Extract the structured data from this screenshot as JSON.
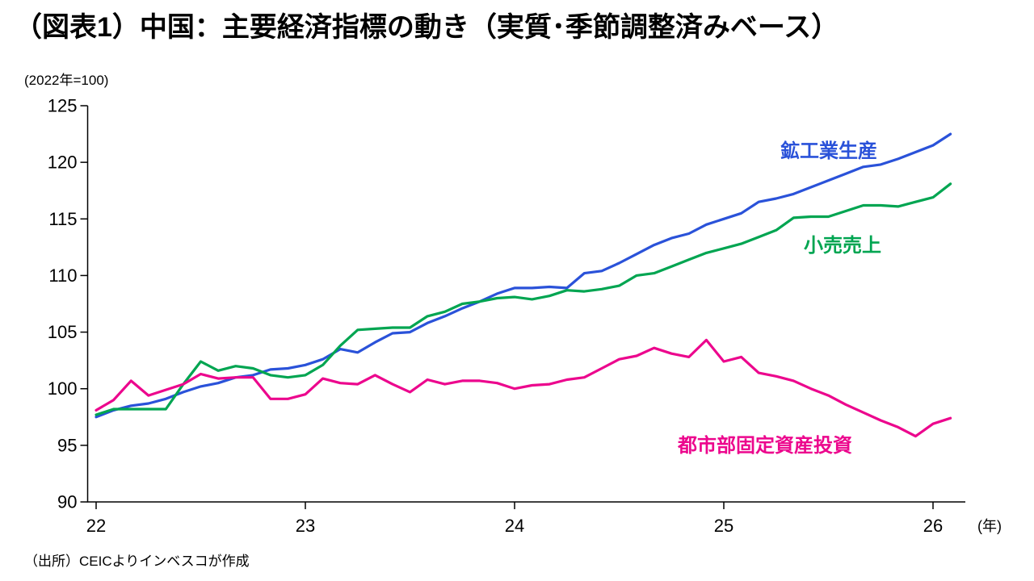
{
  "header": {
    "title": "（図表1）中国：主要経済指標の動き（実質･季節調整済みベース）",
    "unit_note": "(2022年=100)"
  },
  "footer": {
    "source": "（出所）CEICよりインベスコが作成",
    "x_axis_unit": "(年)"
  },
  "chart_data": {
    "type": "line",
    "title": "中国：主要経済指標の動き（実質･季節調整済みベース）",
    "index_note": "2022年=100",
    "x_frequency": "monthly",
    "x_start": "2022-01",
    "x_end": "2026-02",
    "x_tick_labels": [
      "22",
      "23",
      "24",
      "25",
      "26"
    ],
    "xlabel": "年",
    "ylabel": "",
    "ylim": [
      90,
      125
    ],
    "y_ticks": [
      125,
      120,
      115,
      110,
      105,
      100,
      95,
      90
    ],
    "grid": false,
    "legend_position": "inline-labels",
    "axis_color": "#000000",
    "series": [
      {
        "name": "鉱工業生産",
        "color": "#2A52D9",
        "values": [
          97.5,
          98.1,
          98.5,
          98.7,
          99.1,
          99.7,
          100.2,
          100.5,
          101.0,
          101.2,
          101.7,
          101.8,
          102.1,
          102.6,
          103.5,
          103.2,
          104.1,
          104.9,
          105.0,
          105.8,
          106.4,
          107.1,
          107.7,
          108.4,
          108.9,
          108.9,
          109.0,
          108.9,
          110.2,
          110.4,
          111.1,
          111.9,
          112.7,
          113.3,
          113.7,
          114.5,
          115.0,
          115.5,
          116.5,
          116.8,
          117.2,
          117.8,
          118.4,
          119.0,
          119.6,
          119.8,
          120.3,
          120.9,
          121.5,
          122.5
        ]
      },
      {
        "name": "小売売上",
        "color": "#00A551",
        "values": [
          97.7,
          98.2,
          98.2,
          98.2,
          98.2,
          100.4,
          102.4,
          101.6,
          102.0,
          101.8,
          101.2,
          101.0,
          101.2,
          102.1,
          103.8,
          105.2,
          105.3,
          105.4,
          105.4,
          106.4,
          106.8,
          107.5,
          107.7,
          108.0,
          108.1,
          107.9,
          108.2,
          108.7,
          108.6,
          108.8,
          109.1,
          110.0,
          110.2,
          110.8,
          111.4,
          112.0,
          112.4,
          112.8,
          113.4,
          114.0,
          115.1,
          115.2,
          115.2,
          115.7,
          116.2,
          116.2,
          116.1,
          116.5,
          116.9,
          118.1
        ]
      },
      {
        "name": "都市部固定資産投資",
        "color": "#EC068D",
        "values": [
          98.1,
          99.0,
          100.7,
          99.4,
          99.9,
          100.4,
          101.3,
          100.9,
          101.0,
          101.0,
          99.1,
          99.1,
          99.5,
          100.9,
          100.5,
          100.4,
          101.2,
          100.4,
          99.7,
          100.8,
          100.4,
          100.7,
          100.7,
          100.5,
          100.0,
          100.3,
          100.4,
          100.8,
          101.0,
          101.8,
          102.6,
          102.9,
          103.6,
          103.1,
          102.8,
          104.3,
          102.4,
          102.8,
          101.4,
          101.1,
          100.7,
          100.0,
          99.4,
          98.6,
          97.9,
          97.2,
          96.6,
          95.8,
          96.9,
          97.4
        ]
      }
    ]
  }
}
